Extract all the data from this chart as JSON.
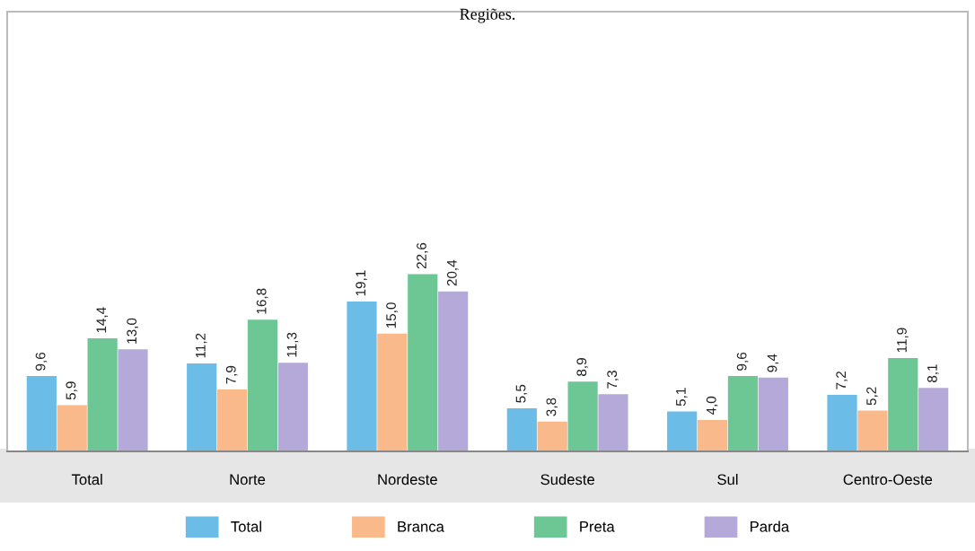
{
  "chart_data": {
    "type": "bar",
    "title": "Regiões.",
    "categories": [
      "Total",
      "Norte",
      "Nordeste",
      "Sudeste",
      "Sul",
      "Centro-Oeste"
    ],
    "series": [
      {
        "name": "Total",
        "color": "#6bbde8",
        "values": [
          9.6,
          11.2,
          19.1,
          5.5,
          5.1,
          7.2
        ],
        "value_labels": [
          "9,6",
          "11,2",
          "19,1",
          "5,5",
          "5,1",
          "7,2"
        ]
      },
      {
        "name": "Branca",
        "color": "#f9b98a",
        "values": [
          5.9,
          7.9,
          15.0,
          3.8,
          4.0,
          5.2
        ],
        "value_labels": [
          "5,9",
          "7,9",
          "15,0",
          "3,8",
          "4,0",
          "5,2"
        ]
      },
      {
        "name": "Preta",
        "color": "#6cc795",
        "values": [
          14.4,
          16.8,
          22.6,
          8.9,
          9.6,
          11.9
        ],
        "value_labels": [
          "14,4",
          "16,8",
          "22,6",
          "8,9",
          "9,6",
          "11,9"
        ]
      },
      {
        "name": "Parda",
        "color": "#b5a9d9",
        "values": [
          13.0,
          11.3,
          20.4,
          7.3,
          9.4,
          8.1
        ],
        "value_labels": [
          "13,0",
          "11,3",
          "20,4",
          "7,3",
          "9,4",
          "8,1"
        ]
      }
    ],
    "legend": "bottom",
    "tick_labels": "x"
  }
}
